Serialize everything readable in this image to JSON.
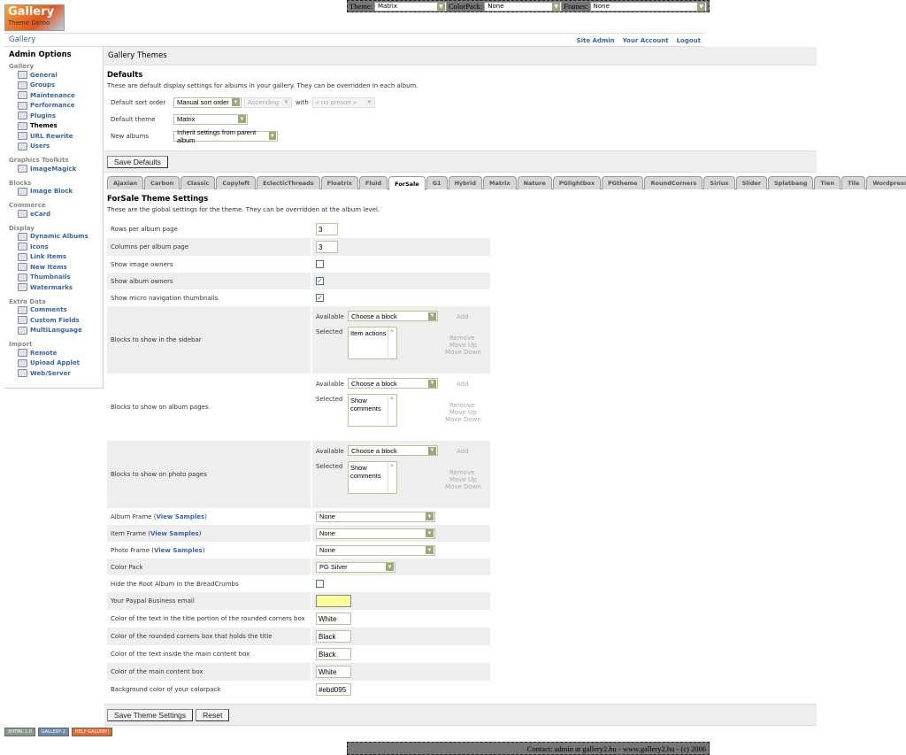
{
  "topbar": {
    "theme_label": "Theme:",
    "theme_value": "Matrix",
    "colorpack_label": "ColorPack:",
    "colorpack_value": "None",
    "frames_label": "Frames:",
    "frames_value": "None"
  },
  "logo": {
    "text": "Gallery",
    "subtext": "Theme Demo"
  },
  "breadcrumb": {
    "gallery": "Gallery",
    "links": [
      "Site Admin",
      "Your Account",
      "Logout"
    ]
  },
  "sidebar": {
    "title": "Admin Options",
    "groups": [
      {
        "label": "Gallery",
        "items": [
          "General",
          "Groups",
          "Maintenance",
          "Performance",
          "Plugins",
          "Themes",
          "URL Rewrite",
          "Users"
        ],
        "current": "Themes"
      },
      {
        "label": "Graphics Toolkits",
        "items": [
          "ImageMagick"
        ]
      },
      {
        "label": "Blocks",
        "items": [
          "Image Block"
        ]
      },
      {
        "label": "Commerce",
        "items": [
          "eCard"
        ]
      },
      {
        "label": "Display",
        "items": [
          "Dynamic Albums",
          "Icons",
          "Link Items",
          "New Items",
          "Thumbnails",
          "Watermarks"
        ]
      },
      {
        "label": "Extra Data",
        "items": [
          "Comments",
          "Custom Fields",
          "MultiLanguage"
        ]
      },
      {
        "label": "Import",
        "items": [
          "Remote",
          "Upload Applet",
          "Web/Server"
        ]
      }
    ]
  },
  "main": {
    "title": "Gallery Themes",
    "defaults": {
      "heading": "Defaults",
      "description": "These are default display settings for albums in your gallery. They can be overridden in each album.",
      "sort_label": "Default sort order",
      "sort_value": "Manual sort order",
      "direction_value": "Ascending",
      "with_label": "with",
      "presort_value": "« no presort »",
      "theme_label": "Default theme",
      "theme_value": "Matrix",
      "new_label": "New albums",
      "new_value": "Inherit settings from parent album",
      "save": "Save Defaults"
    },
    "tabs": [
      "Ajaxian",
      "Carbon",
      "Classic",
      "Copyleft",
      "EclecticThreads",
      "Floatrix",
      "Fluid",
      "ForSale",
      "G1",
      "Hybrid",
      "Matrix",
      "Nature",
      "PGlightbox",
      "PGtheme",
      "RoundCorners",
      "Siriux",
      "Slider",
      "Splatbang",
      "Tien",
      "Tile",
      "WordpressEmbedded"
    ],
    "active_tab": "ForSale",
    "settings": {
      "heading": "ForSale Theme Settings",
      "description": "These are the global settings for the theme. They can be overridden at the album level.",
      "available_label": "Available",
      "selected_label": "Selected",
      "choose": "Choose a block",
      "add": "Add",
      "remove": "Remove",
      "move_up": "Move Up",
      "move_down": "Move Down",
      "view_samples": "View Samples",
      "rows": [
        {
          "label": "Rows per album page",
          "type": "text",
          "value": "3"
        },
        {
          "label": "Columns per album page",
          "type": "text",
          "value": "3"
        },
        {
          "label": "Show image owners",
          "type": "checkbox",
          "checked": false
        },
        {
          "label": "Show album owners",
          "type": "checkbox",
          "checked": true
        },
        {
          "label": "Show micro navigation thumbnails",
          "type": "checkbox",
          "checked": true
        },
        {
          "label": "Blocks to show in the sidebar",
          "type": "blocks",
          "selected": "Item actions"
        },
        {
          "label": "Blocks to show on album pages",
          "type": "blocks",
          "selected": "Show comments"
        },
        {
          "label": "Blocks to show on photo pages",
          "type": "blocks",
          "selected": "Show comments"
        },
        {
          "label": "Album Frame",
          "type": "frame",
          "value": "None"
        },
        {
          "label": "Item Frame",
          "type": "frame",
          "value": "None"
        },
        {
          "label": "Photo Frame",
          "type": "frame",
          "value": "None"
        },
        {
          "label": "Color Pack",
          "type": "select",
          "value": "PG Silver"
        },
        {
          "label": "Hide the Root Album in the BreadCrumbs",
          "type": "checkbox",
          "checked": false
        },
        {
          "label": "Your Paypal Business email",
          "type": "email",
          "value": ""
        },
        {
          "label": "Color of the text in the title portion of the rounded corners box",
          "type": "wide",
          "value": "White"
        },
        {
          "label": "Color of the rounded corners box that holds the title",
          "type": "wide",
          "value": "Black"
        },
        {
          "label": "Color of the text inside the main content box",
          "type": "wide",
          "value": "Black"
        },
        {
          "label": "Color of the main content box",
          "type": "wide",
          "value": "White"
        },
        {
          "label": "Background color of your colarpack",
          "type": "wide",
          "value": "#ebd095"
        }
      ],
      "save": "Save Theme Settings",
      "reset": "Reset"
    }
  },
  "badges": [
    "XHTML 1.0",
    "GALLERY 2",
    "HELP GALLERY!"
  ],
  "footer": "Contact: admin at gallery2.hu - www.gallery2.hu - (c) 2006"
}
